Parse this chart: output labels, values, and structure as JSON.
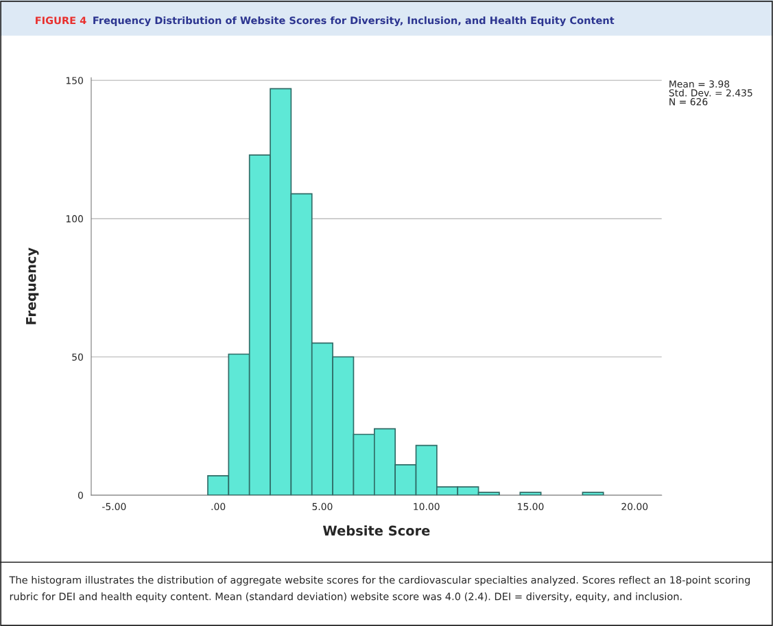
{
  "chart_data": {
    "type": "histogram",
    "title": "Frequency Distribution of Website Scores for Diversity, Inclusion, and Health Equity Content",
    "xlabel": "Website Score",
    "ylabel": "Frequency",
    "bins": [
      -0.5,
      0.5,
      1.5,
      2.5,
      3.5,
      4.5,
      5.5,
      6.5,
      7.5,
      8.5,
      9.5,
      10.5,
      11.5,
      12.5,
      13.5,
      14.5,
      15.5,
      16.5,
      17.5,
      18.5
    ],
    "values": [
      7,
      51,
      123,
      147,
      109,
      55,
      50,
      22,
      24,
      11,
      18,
      3,
      3,
      1,
      0,
      1,
      0,
      0,
      1
    ],
    "color": "#5ee8d6",
    "xlim": [
      -6.1,
      21.3
    ],
    "ylim": [
      0,
      151
    ],
    "xticks": [
      {
        "value": -5,
        "label": "-5.00"
      },
      {
        "value": 0,
        "label": ".00"
      },
      {
        "value": 5,
        "label": "5.00"
      },
      {
        "value": 10,
        "label": "10.00"
      },
      {
        "value": 15,
        "label": "15.00"
      },
      {
        "value": 20,
        "label": "20.00"
      }
    ],
    "yticks": [
      0,
      50,
      100,
      150
    ],
    "grid": "y",
    "annotations": [
      "FIGURE 4",
      "Mean = 3.98\nStd. Dev. = 2.435\nN = 626",
      "The histogram illustrates the distribution of aggregate website scores for the cardiovascular specialties analyzed. Scores reflect an 18-point scoring rubric for DEI and health equity content. Mean (standard deviation) website score was 4.0 (2.4). DEI = diversity, equity, and inclusion."
    ]
  }
}
